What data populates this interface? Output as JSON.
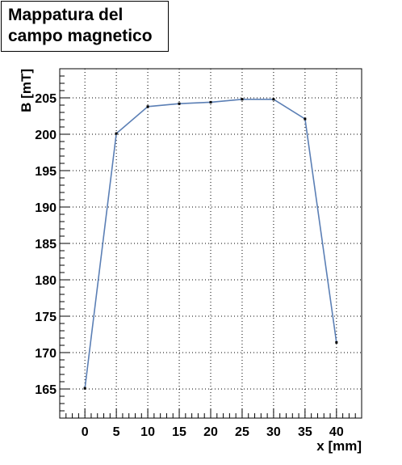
{
  "chart_data": {
    "type": "line",
    "title": [
      "Mappatura del",
      "campo magnetico"
    ],
    "xlabel": "x [mm]",
    "ylabel": "B [mT]",
    "xlim": [
      -4,
      44
    ],
    "ylim": [
      161,
      209
    ],
    "xticks": [
      0,
      5,
      10,
      15,
      20,
      25,
      30,
      35,
      40
    ],
    "yticks": [
      165,
      170,
      175,
      180,
      185,
      190,
      195,
      200,
      205
    ],
    "grid": true,
    "series": [
      {
        "x": [
          0,
          5,
          10,
          15,
          20,
          25,
          30,
          35,
          40
        ],
        "values": [
          165.1,
          200.1,
          203.8,
          204.2,
          204.4,
          204.8,
          204.8,
          202.1,
          171.4
        ],
        "line_color": "#5b7fb5",
        "marker_color": "#000000"
      }
    ]
  }
}
